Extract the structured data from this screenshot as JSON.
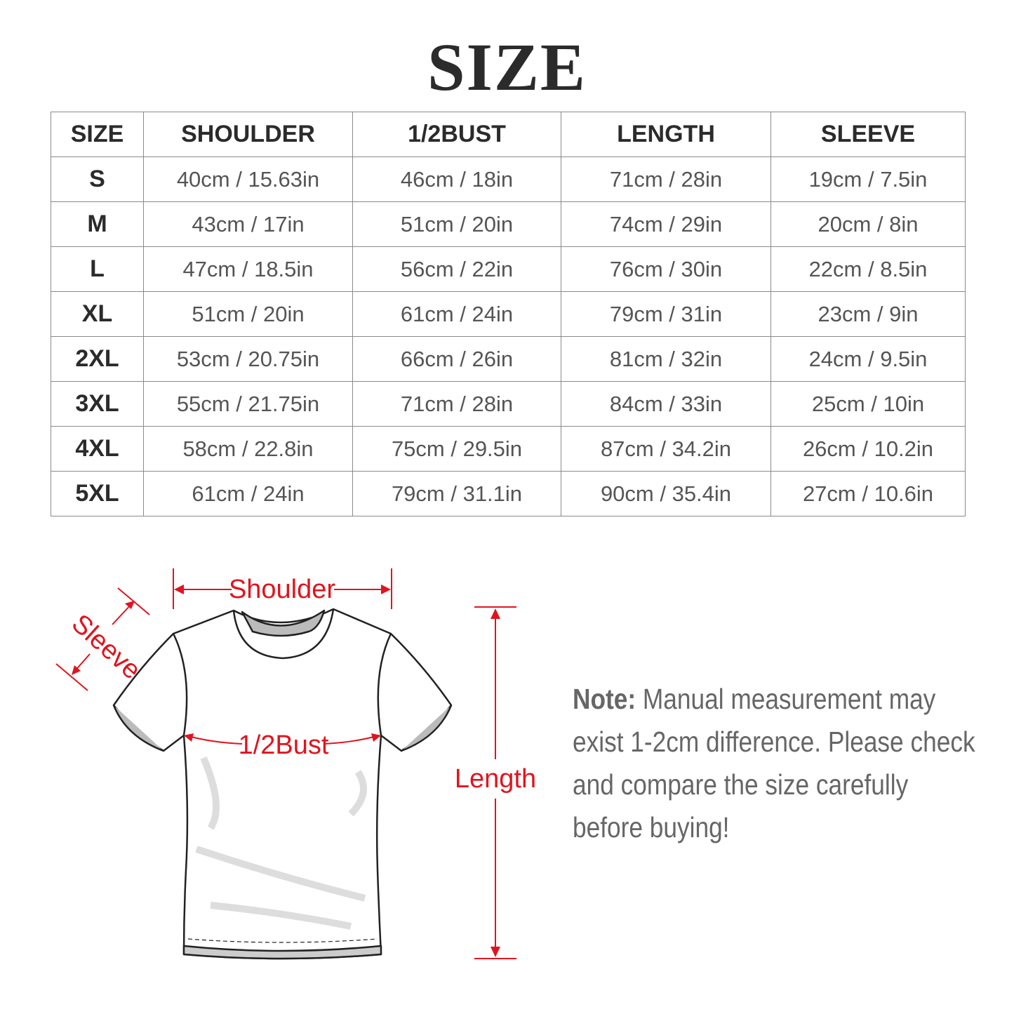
{
  "title": "SIZE",
  "table": {
    "headers": [
      "SIZE",
      "SHOULDER",
      "1/2BUST",
      "LENGTH",
      "SLEEVE"
    ],
    "rows": [
      [
        "S",
        "40cm / 15.63in",
        "46cm / 18in",
        "71cm / 28in",
        "19cm / 7.5in"
      ],
      [
        "M",
        "43cm / 17in",
        "51cm / 20in",
        "74cm / 29in",
        "20cm / 8in"
      ],
      [
        "L",
        "47cm / 18.5in",
        "56cm / 22in",
        "76cm / 30in",
        "22cm / 8.5in"
      ],
      [
        "XL",
        "51cm / 20in",
        "61cm / 24in",
        "79cm / 31in",
        "23cm / 9in"
      ],
      [
        "2XL",
        "53cm / 20.75in",
        "66cm / 26in",
        "81cm / 32in",
        "24cm / 9.5in"
      ],
      [
        "3XL",
        "55cm / 21.75in",
        "71cm / 28in",
        "84cm / 33in",
        "25cm / 10in"
      ],
      [
        "4XL",
        "58cm / 22.8in",
        "75cm / 29.5in",
        "87cm / 34.2in",
        "26cm / 10.2in"
      ],
      [
        "5XL",
        "61cm / 24in",
        "79cm / 31.1in",
        "90cm / 35.4in",
        "27cm / 10.6in"
      ]
    ]
  },
  "diagram": {
    "shoulder_label": "Shoulder",
    "sleeve_label": "Sleeve",
    "bust_label": "1/2Bust",
    "length_label": "Length",
    "accent_color": "#e0141e"
  },
  "note": {
    "label": "Note:",
    "text": " Manual measurement may exist 1-2cm difference. Please check and compare the size carefully before buying!"
  }
}
